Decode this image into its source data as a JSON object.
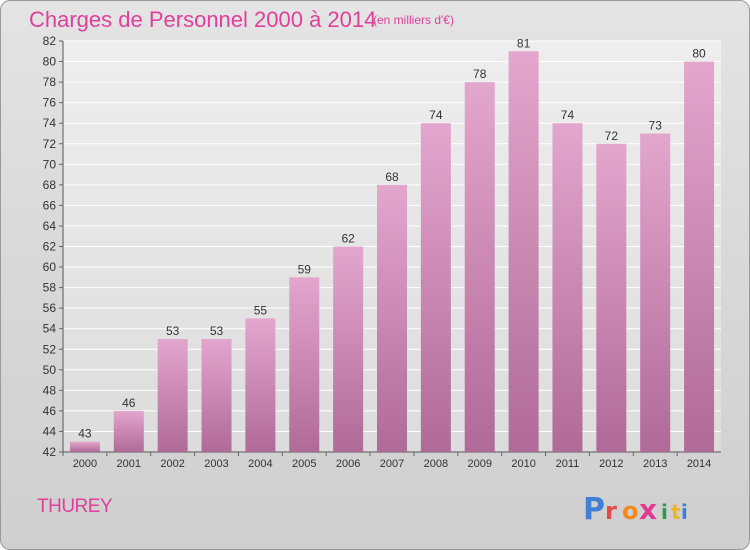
{
  "header": {
    "title": "Charges de Personnel 2000 à 2014",
    "subtitle": "(en milliers d'€)"
  },
  "footer": {
    "commune": "THUREY",
    "logo_text": "Proxiti"
  },
  "colors": {
    "title": "#e0409a",
    "bar_top": "#e3a6cd",
    "bar_bottom": "#b06a98",
    "grid": "#ffffff",
    "logo_letters": [
      "#3f7fd6",
      "#e5484d",
      "#f08a1c",
      "#e23b8f",
      "#2d9a4a",
      "#f2b320",
      "#3f7fd6"
    ]
  },
  "chart_data": {
    "type": "bar",
    "categories": [
      "2000",
      "2001",
      "2002",
      "2003",
      "2004",
      "2005",
      "2006",
      "2007",
      "2008",
      "2009",
      "2010",
      "2011",
      "2012",
      "2013",
      "2014"
    ],
    "values": [
      43,
      46,
      53,
      53,
      55,
      59,
      62,
      68,
      74,
      78,
      81,
      74,
      72,
      73,
      80
    ],
    "ylim": [
      42,
      82
    ],
    "ytick_step": 2,
    "grid": true,
    "xlabel": "",
    "ylabel": ""
  }
}
